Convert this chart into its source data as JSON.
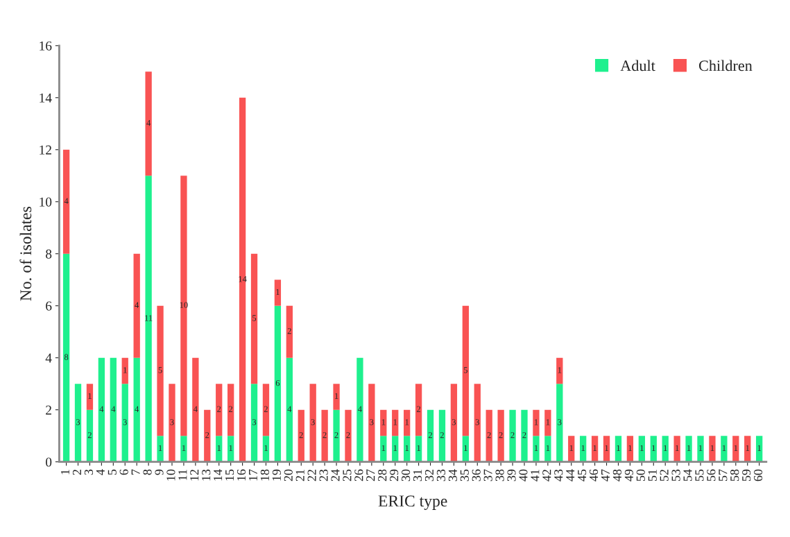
{
  "chart_data": {
    "type": "bar",
    "stacked": true,
    "xlabel": "ERIC type",
    "ylabel": "No. of isolates",
    "categories": [
      "1",
      "2",
      "3",
      "4",
      "5",
      "6",
      "7",
      "8",
      "9",
      "10",
      "11",
      "12",
      "13",
      "14",
      "15",
      "16",
      "17",
      "18",
      "19",
      "20",
      "21",
      "22",
      "23",
      "24",
      "25",
      "26",
      "27",
      "28",
      "29",
      "30",
      "31",
      "32",
      "33",
      "34",
      "35",
      "36",
      "37",
      "38",
      "39",
      "40",
      "41",
      "42",
      "43",
      "44",
      "45",
      "46",
      "47",
      "48",
      "49",
      "50",
      "51",
      "52",
      "53",
      "54",
      "55",
      "56",
      "57",
      "58",
      "59",
      "60"
    ],
    "series": [
      {
        "name": "Adult",
        "color": "#1ef08e",
        "values": [
          8,
          3,
          2,
          4,
          4,
          3,
          4,
          11,
          1,
          0,
          1,
          0,
          0,
          1,
          1,
          0,
          3,
          1,
          6,
          4,
          0,
          0,
          0,
          2,
          0,
          4,
          0,
          1,
          1,
          1,
          1,
          2,
          2,
          0,
          1,
          0,
          0,
          0,
          2,
          2,
          1,
          1,
          3,
          0,
          1,
          0,
          0,
          1,
          0,
          1,
          1,
          1,
          0,
          1,
          1,
          0,
          1,
          0,
          0,
          1
        ],
        "value_labels": [
          "8",
          "3",
          "2",
          "4",
          "4",
          "3",
          "4",
          "11",
          "1",
          null,
          "1",
          null,
          null,
          "1",
          "1",
          null,
          "3",
          "1",
          "6",
          "4",
          null,
          null,
          null,
          "2",
          null,
          "4",
          null,
          "1",
          "1",
          "1",
          "1",
          "2",
          "2",
          null,
          "1",
          null,
          null,
          null,
          "2",
          "2",
          "1",
          "1",
          "3",
          null,
          "1",
          null,
          null,
          "1",
          null,
          "1",
          "1",
          "1",
          null,
          "1",
          "1",
          null,
          "1",
          null,
          null,
          "1"
        ]
      },
      {
        "name": "Children",
        "color": "#f95353",
        "values": [
          4,
          0,
          1,
          0,
          0,
          1,
          4,
          4,
          5,
          3,
          10,
          4,
          2,
          2,
          2,
          14,
          5,
          2,
          1,
          2,
          2,
          3,
          2,
          1,
          2,
          0,
          3,
          1,
          1,
          1,
          2,
          0,
          0,
          3,
          5,
          3,
          2,
          2,
          0,
          0,
          1,
          1,
          1,
          1,
          0,
          1,
          1,
          0,
          1,
          0,
          0,
          0,
          1,
          0,
          0,
          1,
          0,
          1,
          1,
          0
        ],
        "value_labels": [
          "4",
          null,
          "1",
          null,
          null,
          "1",
          "4",
          "4",
          "5",
          "3",
          "10",
          "4",
          "2",
          "2",
          "2",
          "14",
          "5",
          "2",
          "1",
          "2",
          "2",
          "3",
          "2",
          "1",
          "2",
          null,
          "3",
          "1",
          "1",
          "1",
          "2",
          null,
          null,
          "3",
          "5",
          "3",
          "2",
          "2",
          null,
          null,
          "1",
          "1",
          "1",
          "1",
          null,
          "1",
          "1",
          null,
          "1",
          null,
          null,
          null,
          "1",
          null,
          null,
          "1",
          null,
          "1",
          "1",
          null
        ]
      }
    ],
    "ylim": [
      0,
      16
    ],
    "yticks": [
      0,
      2,
      4,
      6,
      8,
      10,
      12,
      14,
      16
    ],
    "grid": false,
    "legend": "top right"
  }
}
